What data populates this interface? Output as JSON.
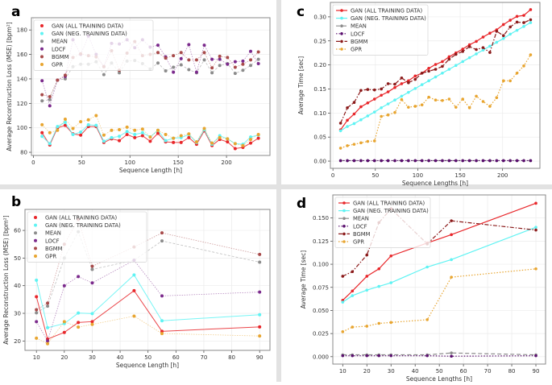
{
  "legend_labels": [
    "GAN (ALL TRAINING DATA)",
    "GAN (NEG. TRAINING DATA)",
    "MEAN",
    "LOCF",
    "BGMM",
    "GPR"
  ],
  "chart_data": [
    {
      "panel": "a",
      "type": "line",
      "xlabel": "Sequence Length [h]",
      "ylabel": "Average Reconstruction Loss (MSE) [bpm²]",
      "xlim": [
        -2,
        245
      ],
      "ylim": [
        77.4,
        190
      ],
      "xticks": [
        0,
        50,
        100,
        150,
        200
      ],
      "yticks": [
        80,
        100,
        120,
        140,
        160,
        180
      ],
      "grid": true,
      "legend": "top-left",
      "legend_style": "markers",
      "x": [
        9,
        17,
        25,
        33,
        41,
        49,
        57,
        65,
        73,
        81,
        89,
        97,
        105,
        113,
        121,
        129,
        137,
        145,
        153,
        161,
        169,
        177,
        185,
        193,
        201,
        209,
        217,
        225,
        233
      ],
      "series": [
        {
          "name": "GAN (ALL TRAINING DATA)",
          "color": "#e8262a",
          "values": [
            96,
            86,
            100,
            102,
            95,
            94,
            101,
            101,
            88,
            91,
            89.5,
            94.5,
            92,
            93.5,
            89,
            95.5,
            88.5,
            88,
            88,
            92,
            86.5,
            97.5,
            85.5,
            90.5,
            88.5,
            83,
            84,
            87.5,
            91.5
          ]
        },
        {
          "name": "GAN (NEG. TRAINING DATA)",
          "color": "#5ff3f3",
          "values": [
            93,
            87,
            101,
            104.5,
            94.5,
            96.5,
            102.5,
            102,
            89,
            92,
            93,
            97,
            94.5,
            96,
            92.5,
            98,
            89.5,
            91.5,
            92,
            94.5,
            88,
            98.5,
            86.5,
            93.5,
            91,
            87,
            86.5,
            92.5,
            94
          ]
        },
        {
          "name": "MEAN",
          "color": "#8c8c8c",
          "values": [
            122,
            123,
            139,
            140,
            150,
            152,
            152,
            154,
            143.5,
            153,
            145,
            154.5,
            155,
            152.5,
            148,
            153,
            146.5,
            149.5,
            151.5,
            147.5,
            145,
            155.5,
            145,
            151,
            152.5,
            144.5,
            147,
            151,
            156
          ]
        },
        {
          "name": "LOCF",
          "color": "#7b2a8c",
          "values": [
            138.5,
            118,
            139,
            142,
            172,
            160,
            175,
            160,
            150,
            169,
            168.5,
            172,
            165.5,
            172,
            166,
            167.5,
            158,
            145.5,
            156.5,
            168,
            145.5,
            167.5,
            156,
            156,
            152,
            154,
            154.5,
            162.5,
            152.5
          ]
        },
        {
          "name": "BGMM",
          "color": "#a84a4a",
          "values": [
            127,
            125.5,
            139,
            143,
            157.5,
            160.5,
            159,
            158,
            150,
            163,
            147,
            161,
            170.5,
            159,
            160,
            161.5,
            157,
            159,
            161.5,
            155.5,
            155.5,
            161.5,
            149,
            158.5,
            157.5,
            149.5,
            152,
            155.5,
            162
          ]
        },
        {
          "name": "GPR",
          "color": "#e8a530",
          "values": [
            102.5,
            96,
            98,
            107,
            99.5,
            105,
            106.5,
            110,
            94,
            98,
            98.5,
            100.5,
            98,
            99,
            92.5,
            98,
            94.5,
            91.5,
            93.5,
            95,
            88.5,
            99.5,
            87.5,
            92,
            91,
            87,
            85.5,
            90.5,
            94.5
          ]
        }
      ]
    },
    {
      "panel": "b",
      "type": "line",
      "xlabel": "Sequence Length [h]",
      "ylabel": "Average Reconstruction Loss (MSE) [bpm²]",
      "xlim": [
        5.9,
        93.7
      ],
      "ylim": [
        16.6,
        67.6
      ],
      "xticks": [
        10,
        20,
        30,
        40,
        50,
        60,
        70,
        80,
        90
      ],
      "yticks": [
        20,
        30,
        40,
        50,
        60
      ],
      "grid": true,
      "legend": "top-left",
      "legend_style": "markers",
      "x": [
        10,
        14,
        20,
        25,
        30,
        45,
        55,
        90
      ],
      "series": [
        {
          "name": "GAN (ALL TRAINING DATA)",
          "color": "#e8262a",
          "values": [
            36,
            20.7,
            23.1,
            26.7,
            27,
            38.2,
            23.5,
            25.1
          ]
        },
        {
          "name": "GAN (NEG. TRAINING DATA)",
          "color": "#5ff3f3",
          "values": [
            42,
            24.8,
            26.3,
            30.1,
            29.9,
            43.9,
            27.3,
            29.5
          ]
        },
        {
          "name": "MEAN",
          "color": "#8c8c8c",
          "values": [
            30.2,
            32.6,
            50,
            59.5,
            45.9,
            49.2,
            56.2,
            48.5
          ]
        },
        {
          "name": "LOCF",
          "color": "#7b2a8c",
          "values": [
            27,
            20,
            40,
            43.3,
            41,
            49.2,
            36.3,
            37.7
          ]
        },
        {
          "name": "BGMM",
          "color": "#a84a4a",
          "values": [
            31.3,
            33.7,
            55,
            64,
            47,
            54,
            59.1,
            51.3
          ]
        },
        {
          "name": "GPR",
          "color": "#e8a530",
          "values": [
            21,
            19,
            27,
            25,
            26,
            29,
            22.7,
            21.8
          ]
        }
      ]
    },
    {
      "panel": "c",
      "type": "line",
      "xlabel": "Sequence Lengths [h]",
      "ylabel": "Average Time [sec]",
      "xlim": [
        -3,
        244
      ],
      "ylim": [
        -0.015,
        0.33
      ],
      "xticks": [
        0,
        50,
        100,
        150,
        200
      ],
      "yticks": [
        0.0,
        0.05,
        0.1,
        0.15,
        0.2,
        0.25,
        0.3
      ],
      "grid": true,
      "legend": "top-left",
      "legend_style": "lines",
      "x": [
        9,
        17,
        25,
        33,
        41,
        49,
        57,
        65,
        73,
        81,
        89,
        97,
        105,
        113,
        121,
        129,
        137,
        145,
        153,
        161,
        169,
        177,
        185,
        193,
        201,
        209,
        217,
        225,
        233
      ],
      "series": [
        {
          "name": "GAN (ALL TRAINING DATA)",
          "color": "#e8262a",
          "dash": "",
          "values": [
            0.065,
            0.085,
            0.098,
            0.113,
            0.121,
            0.129,
            0.137,
            0.144,
            0.153,
            0.161,
            0.167,
            0.177,
            0.183,
            0.193,
            0.201,
            0.207,
            0.217,
            0.225,
            0.233,
            0.242,
            0.249,
            0.258,
            0.266,
            0.273,
            0.284,
            0.293,
            0.301,
            0.303,
            0.315
          ]
        },
        {
          "name": "GAN (NEG. TRAINING DATA)",
          "color": "#5ff3f3",
          "dash": "",
          "values": [
            0.063,
            0.072,
            0.078,
            0.086,
            0.094,
            0.102,
            0.111,
            0.119,
            0.127,
            0.135,
            0.143,
            0.151,
            0.159,
            0.167,
            0.175,
            0.183,
            0.191,
            0.199,
            0.207,
            0.215,
            0.223,
            0.231,
            0.239,
            0.247,
            0.255,
            0.264,
            0.272,
            0.28,
            0.288
          ]
        },
        {
          "name": "MEAN",
          "color": "#8c8c8c",
          "dash": "5,3",
          "values": [
            0.001,
            0.001,
            0.001,
            0.001,
            0.001,
            0.001,
            0.001,
            0.001,
            0.001,
            0.001,
            0.001,
            0.001,
            0.001,
            0.001,
            0.001,
            0.001,
            0.001,
            0.001,
            0.001,
            0.001,
            0.001,
            0.001,
            0.001,
            0.001,
            0.001,
            0.001,
            0.001,
            0.001,
            0.001
          ]
        },
        {
          "name": "LOCF",
          "color": "#5a0f6e",
          "dash": "1.5,2",
          "values": [
            0.001,
            0.001,
            0.001,
            0.001,
            0.001,
            0.001,
            0.001,
            0.001,
            0.001,
            0.001,
            0.001,
            0.001,
            0.001,
            0.001,
            0.001,
            0.001,
            0.001,
            0.001,
            0.001,
            0.001,
            0.001,
            0.001,
            0.001,
            0.001,
            0.001,
            0.001,
            0.001,
            0.001,
            0.001
          ]
        },
        {
          "name": "BGMM",
          "color": "#8b1a1a",
          "dash": "5,2,1.5,2",
          "values": [
            0.079,
            0.111,
            0.122,
            0.147,
            0.149,
            0.148,
            0.15,
            0.161,
            0.16,
            0.173,
            0.163,
            0.17,
            0.183,
            0.187,
            0.191,
            0.197,
            0.212,
            0.222,
            0.228,
            0.238,
            0.232,
            0.236,
            0.226,
            0.27,
            0.261,
            0.279,
            0.289,
            0.288,
            0.294
          ]
        },
        {
          "name": "GPR",
          "color": "#e8a530",
          "dash": "1.5,2",
          "values": [
            0.027,
            0.032,
            0.035,
            0.038,
            0.041,
            0.042,
            0.093,
            0.096,
            0.101,
            0.128,
            0.112,
            0.114,
            0.117,
            0.133,
            0.127,
            0.126,
            0.129,
            0.112,
            0.129,
            0.111,
            0.135,
            0.124,
            0.114,
            0.132,
            0.167,
            0.167,
            0.183,
            0.198,
            0.221
          ]
        }
      ]
    },
    {
      "panel": "d",
      "type": "line",
      "xlabel": "Sequence Lengths [h]",
      "ylabel": "Average Time [sec]",
      "xlim": [
        5.9,
        94
      ],
      "ylim": [
        -0.008,
        0.175
      ],
      "xticks": [
        10,
        20,
        30,
        40,
        50,
        60,
        70,
        80,
        90
      ],
      "yticks": [
        0.0,
        0.025,
        0.05,
        0.075,
        0.1,
        0.125,
        0.15
      ],
      "grid": true,
      "legend": "top-left",
      "legend_style": "lines",
      "x": [
        10,
        14,
        20,
        25,
        30,
        45,
        55,
        90
      ],
      "series": [
        {
          "name": "GAN (ALL TRAINING DATA)",
          "color": "#e8262a",
          "dash": "",
          "values": [
            0.061,
            0.071,
            0.087,
            0.095,
            0.109,
            0.123,
            0.132,
            0.166
          ]
        },
        {
          "name": "GAN (NEG. TRAINING DATA)",
          "color": "#5ff3f3",
          "dash": "",
          "values": [
            0.059,
            0.066,
            0.072,
            0.076,
            0.08,
            0.097,
            0.105,
            0.14
          ]
        },
        {
          "name": "MEAN",
          "color": "#8c8c8c",
          "dash": "5,3",
          "values": [
            0.002,
            0.002,
            0.002,
            0.002,
            0.002,
            0.002,
            0.004,
            0.002
          ]
        },
        {
          "name": "LOCF",
          "color": "#5a0f6e",
          "dash": "1.5,2",
          "values": [
            0.001,
            0.001,
            0.001,
            0.001,
            0.001,
            0.001,
            0.0005,
            0.001
          ]
        },
        {
          "name": "BGMM",
          "color": "#8b1a1a",
          "dash": "5,2,1.5,2",
          "values": [
            0.087,
            0.092,
            0.11,
            0.145,
            0.16,
            0.122,
            0.147,
            0.137
          ]
        },
        {
          "name": "GPR",
          "color": "#e8a530",
          "dash": "1.5,2",
          "values": [
            0.027,
            0.032,
            0.033,
            0.036,
            0.037,
            0.04,
            0.086,
            0.095
          ]
        }
      ]
    }
  ]
}
